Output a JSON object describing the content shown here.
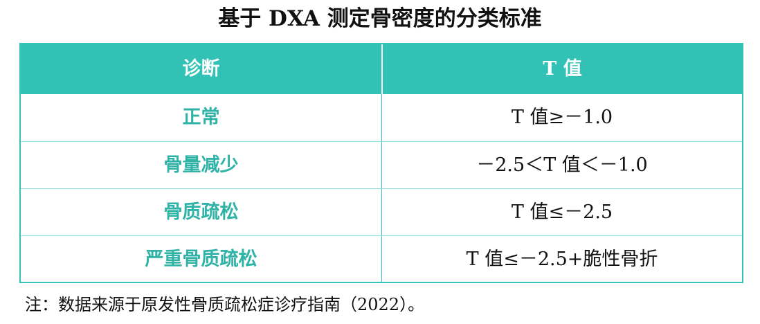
{
  "title": "基于 DXA 测定骨密度的分类标准",
  "table": {
    "headers": [
      "诊断",
      "T 值"
    ],
    "rows": [
      {
        "diagnosis": "正常",
        "t_value": "T 值≥－1.0"
      },
      {
        "diagnosis": "骨量减少",
        "t_value": "－2.5＜T 值＜－1.0"
      },
      {
        "diagnosis": "骨质疏松",
        "t_value": "T 值≤－2.5"
      },
      {
        "diagnosis": "严重骨质疏松",
        "t_value": "T 值≤－2.5+脆性骨折"
      }
    ]
  },
  "note": "注：数据来源于原发性骨质疏松症诊疗指南（2022）。",
  "colors": {
    "header_bg": "#31c2b5",
    "diagnosis_text": "#2fb3a6",
    "border": "#34c3b6"
  }
}
